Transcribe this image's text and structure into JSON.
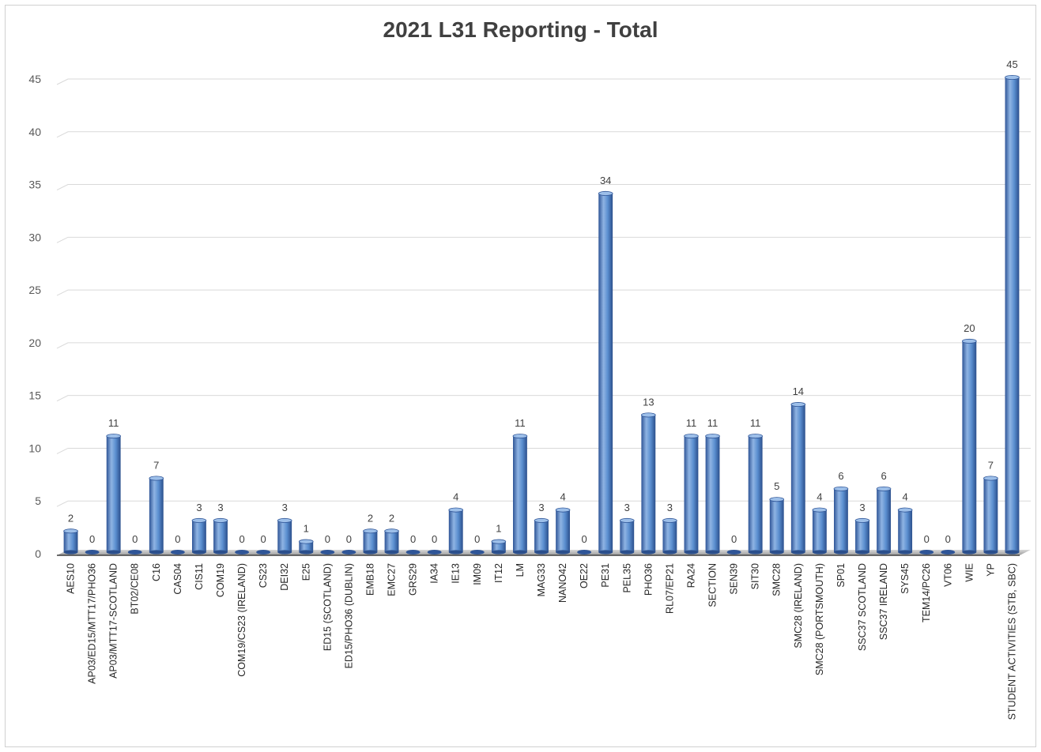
{
  "chart_data": {
    "type": "bar",
    "title": "2021 L31 Reporting - Total",
    "xlabel": "",
    "ylabel": "",
    "ylim": [
      0,
      45
    ],
    "yticks": [
      0,
      5,
      10,
      15,
      20,
      25,
      30,
      35,
      40,
      45
    ],
    "grid": true,
    "legend": "none",
    "colors": {
      "bar": "#4f81bd",
      "bar_dark": "#2f5597",
      "bar_light": "#8fb4e3",
      "floor": "#a6a6a6",
      "grid": "#d9d9d9"
    },
    "categories": [
      "AES10",
      "AP03/ED15/MTT17/PHO36",
      "AP03/MTT17-SCOTLAND",
      "BT02/CE08",
      "C16",
      "CAS04",
      "CIS11",
      "COM19",
      "COM19/CS23 (IRELAND)",
      "CS23",
      "DEI32",
      "E25",
      "ED15 (SCOTLAND)",
      "ED15/PHO36 (DUBLIN)",
      "EMB18",
      "EMC27",
      "GRS29",
      "IA34",
      "IE13",
      "IM09",
      "IT12",
      "LM",
      "MAG33",
      "NANO42",
      "OE22",
      "PE31",
      "PEL35",
      "PHO36",
      "RL07/EP21",
      "RA24",
      "SECTION",
      "SEN39",
      "SIT30",
      "SMC28",
      "SMC28 (IRELAND)",
      "SMC28 (PORTSMOUTH)",
      "SP01",
      "SSC37 SCOTLAND",
      "SSC37 IRELAND",
      "SYS45",
      "TEM14/PC26",
      "VT06",
      "WIE",
      "YP",
      "STUDENT ACTIVITIES (STB, SBC)"
    ],
    "values": [
      2,
      0,
      11,
      0,
      7,
      0,
      3,
      3,
      0,
      0,
      3,
      1,
      0,
      0,
      2,
      2,
      0,
      0,
      4,
      0,
      1,
      11,
      3,
      4,
      0,
      34,
      3,
      13,
      3,
      11,
      11,
      0,
      11,
      5,
      14,
      4,
      6,
      3,
      6,
      4,
      0,
      0,
      20,
      7,
      45
    ]
  }
}
